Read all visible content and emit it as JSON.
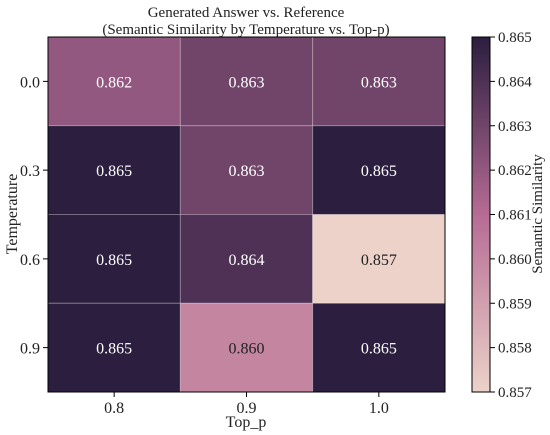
{
  "chart_data": {
    "type": "heatmap",
    "title": "Generated Answer vs. Reference",
    "subtitle": "(Semantic Similarity by Temperature vs. Top-p)",
    "xlabel": "Top_p",
    "ylabel": "Temperature",
    "x_categories": [
      "0.8",
      "0.9",
      "1.0"
    ],
    "y_categories": [
      "0.0",
      "0.3",
      "0.6",
      "0.9"
    ],
    "values": [
      [
        0.862,
        0.863,
        0.863
      ],
      [
        0.865,
        0.863,
        0.865
      ],
      [
        0.865,
        0.864,
        0.857
      ],
      [
        0.865,
        0.86,
        0.865
      ]
    ],
    "cell_labels": [
      [
        "0.862",
        "0.863",
        "0.863"
      ],
      [
        "0.865",
        "0.863",
        "0.865"
      ],
      [
        "0.865",
        "0.864",
        "0.857"
      ],
      [
        "0.865",
        "0.860",
        "0.865"
      ]
    ],
    "colorbar": {
      "label": "Semantic Similarity",
      "vmin": 0.857,
      "vmax": 0.865,
      "ticks": [
        "0.857",
        "0.858",
        "0.859",
        "0.860",
        "0.861",
        "0.862",
        "0.863",
        "0.864",
        "0.865"
      ],
      "colormap_low": "#ecd2c9",
      "colormap_mid": "#b66b94",
      "colormap_high": "#2b1e3e"
    }
  }
}
